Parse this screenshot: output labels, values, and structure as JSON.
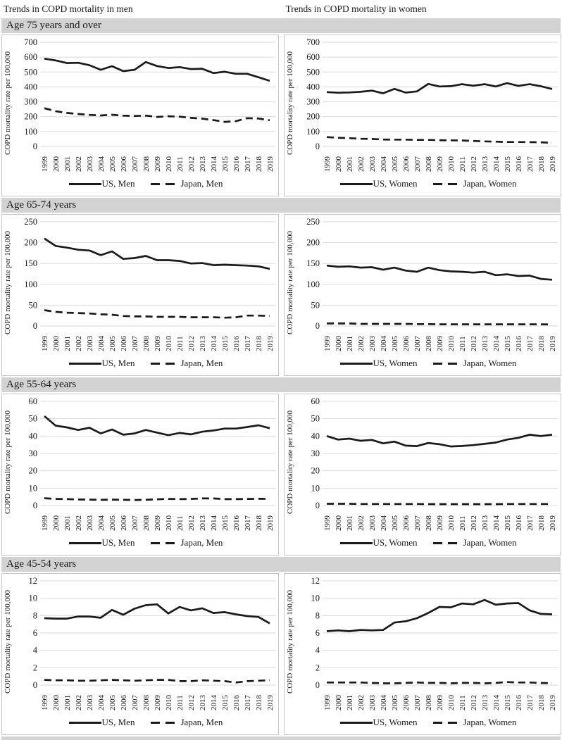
{
  "column_titles": {
    "men": "Trends in COPD mortality in men",
    "women": "Trends in COPD mortality in women"
  },
  "age_bands": [
    "Age 75 years and over",
    "Age 65-74 years",
    "Age 55-64 years",
    "Age 45-54 years"
  ],
  "colors": {
    "line": "#1a1a1a",
    "grid": "#dadada",
    "band_bg": "#d2d2d2",
    "panel_border": "#c6c6c6",
    "text": "#1a1a1a"
  },
  "chart_data": [
    {
      "type": "line",
      "age_group": "Age 75 years and over",
      "column": "men",
      "ylabel": "COPD mortality rate per 100,000",
      "ylim": [
        0,
        700
      ],
      "ytick_interval": 100,
      "grid": true,
      "legend_position": "bottom",
      "categories": [
        "1999",
        "2000",
        "2001",
        "2002",
        "2003",
        "2004",
        "2005",
        "2006",
        "2007",
        "2008",
        "2009",
        "2010",
        "2011",
        "2012",
        "2013",
        "2014",
        "2015",
        "2016",
        "2017",
        "2018",
        "2019"
      ],
      "series": [
        {
          "name": "US, Men",
          "line_style": "solid",
          "values": [
            590,
            578,
            560,
            562,
            546,
            515,
            539,
            506,
            515,
            567,
            540,
            527,
            533,
            520,
            522,
            493,
            502,
            488,
            488,
            465,
            441
          ]
        },
        {
          "name": "Japan, Men",
          "line_style": "dashed",
          "values": [
            257,
            237,
            225,
            218,
            212,
            208,
            213,
            207,
            205,
            207,
            198,
            203,
            200,
            192,
            187,
            177,
            165,
            170,
            190,
            188,
            176
          ]
        }
      ]
    },
    {
      "type": "line",
      "age_group": "Age 75 years and over",
      "column": "women",
      "ylabel": "COPD mortality rate per 100,000",
      "ylim": [
        0,
        700
      ],
      "ytick_interval": 100,
      "grid": true,
      "legend_position": "bottom",
      "categories": [
        "1999",
        "2000",
        "2001",
        "2002",
        "2003",
        "2004",
        "2005",
        "2006",
        "2007",
        "2008",
        "2009",
        "2010",
        "2011",
        "2012",
        "2013",
        "2014",
        "2015",
        "2016",
        "2017",
        "2018",
        "2019"
      ],
      "series": [
        {
          "name": "US, Women",
          "line_style": "solid",
          "values": [
            365,
            361,
            363,
            367,
            375,
            357,
            387,
            362,
            370,
            420,
            403,
            405,
            418,
            408,
            418,
            403,
            425,
            407,
            418,
            405,
            386
          ]
        },
        {
          "name": "Japan, Women",
          "line_style": "dashed",
          "values": [
            63,
            58,
            56,
            52,
            50,
            47,
            46,
            46,
            44,
            44,
            42,
            41,
            40,
            37,
            34,
            32,
            30,
            30,
            29,
            28,
            25
          ]
        }
      ]
    },
    {
      "type": "line",
      "age_group": "Age 65-74 years",
      "column": "men",
      "ylabel": "COPD mortality rate per 100,000",
      "ylim": [
        0,
        250
      ],
      "ytick_interval": 50,
      "grid": true,
      "legend_position": "bottom",
      "categories": [
        "1999",
        "2000",
        "2001",
        "2002",
        "2003",
        "2004",
        "2005",
        "2006",
        "2007",
        "2008",
        "2009",
        "2010",
        "2011",
        "2012",
        "2013",
        "2014",
        "2015",
        "2016",
        "2017",
        "2018",
        "2019"
      ],
      "series": [
        {
          "name": "US, Men",
          "line_style": "solid",
          "values": [
            210,
            192,
            188,
            183,
            181,
            170,
            179,
            161,
            163,
            168,
            158,
            158,
            156,
            150,
            151,
            146,
            147,
            146,
            145,
            143,
            137
          ]
        },
        {
          "name": "Japan, Men",
          "line_style": "dashed",
          "values": [
            38,
            34,
            32,
            31,
            30,
            28,
            27,
            24,
            23,
            23,
            22,
            22,
            22,
            21,
            21,
            21,
            20,
            21,
            25,
            25,
            24
          ]
        }
      ]
    },
    {
      "type": "line",
      "age_group": "Age 65-74 years",
      "column": "women",
      "ylabel": "COPD mortality rate per 100,000",
      "ylim": [
        0,
        250
      ],
      "ytick_interval": 50,
      "grid": true,
      "legend_position": "bottom",
      "categories": [
        "1999",
        "2000",
        "2001",
        "2002",
        "2003",
        "2004",
        "2005",
        "2006",
        "2007",
        "2008",
        "2009",
        "2010",
        "2011",
        "2012",
        "2013",
        "2014",
        "2015",
        "2016",
        "2017",
        "2018",
        "2019"
      ],
      "series": [
        {
          "name": "US, Women",
          "line_style": "solid",
          "values": [
            145,
            142,
            143,
            140,
            141,
            135,
            140,
            133,
            130,
            140,
            134,
            131,
            130,
            128,
            130,
            122,
            124,
            120,
            121,
            113,
            111
          ]
        },
        {
          "name": "Japan, Women",
          "line_style": "dashed",
          "values": [
            6,
            6,
            6,
            5,
            5,
            5,
            5,
            5,
            4.5,
            4.5,
            4,
            4,
            4,
            4,
            4,
            4,
            4,
            4,
            4,
            4,
            3.5
          ]
        }
      ]
    },
    {
      "type": "line",
      "age_group": "Age 55-64 years",
      "column": "men",
      "ylabel": "COPD mortality rate per 100,000",
      "ylim": [
        0,
        60
      ],
      "ytick_interval": 10,
      "grid": true,
      "legend_position": "bottom",
      "categories": [
        "1999",
        "2000",
        "2001",
        "2002",
        "2003",
        "2004",
        "2005",
        "2006",
        "2007",
        "2008",
        "2009",
        "2010",
        "2011",
        "2012",
        "2013",
        "2014",
        "2015",
        "2016",
        "2017",
        "2018",
        "2019"
      ],
      "series": [
        {
          "name": "US, Men",
          "line_style": "solid",
          "values": [
            51.5,
            46,
            45,
            43.5,
            44.8,
            41.5,
            43.8,
            40.8,
            41.5,
            43.5,
            42,
            40.5,
            41.8,
            41,
            42.5,
            43.2,
            44.3,
            44.3,
            45.2,
            46.2,
            44.5
          ]
        },
        {
          "name": "Japan, Men",
          "line_style": "dashed",
          "values": [
            4.2,
            3.8,
            3.7,
            3.5,
            3.4,
            3.3,
            3.4,
            3.3,
            3.2,
            3.3,
            3.6,
            3.8,
            3.7,
            3.8,
            4.1,
            4.1,
            3.7,
            3.7,
            3.8,
            3.9,
            3.8
          ]
        }
      ]
    },
    {
      "type": "line",
      "age_group": "Age 55-64 years",
      "column": "women",
      "ylabel": "COPD mortality rate per 100,000",
      "ylim": [
        0,
        60
      ],
      "ytick_interval": 10,
      "grid": true,
      "legend_position": "bottom",
      "categories": [
        "1999",
        "2000",
        "2001",
        "2002",
        "2003",
        "2004",
        "2005",
        "2006",
        "2007",
        "2008",
        "2009",
        "2010",
        "2011",
        "2012",
        "2013",
        "2014",
        "2015",
        "2016",
        "2017",
        "2018",
        "2019"
      ],
      "series": [
        {
          "name": "US, Women",
          "line_style": "solid",
          "values": [
            40,
            38,
            38.5,
            37.3,
            37.8,
            35.8,
            36.8,
            34.5,
            34.2,
            36,
            35.3,
            34,
            34.3,
            34.8,
            35.5,
            36.3,
            38,
            39,
            40.8,
            40,
            40.8
          ]
        },
        {
          "name": "Japan, Women",
          "line_style": "dashed",
          "values": [
            1,
            1,
            1,
            0.9,
            0.9,
            0.9,
            0.9,
            0.9,
            0.9,
            0.8,
            0.8,
            0.8,
            0.8,
            0.8,
            0.8,
            0.8,
            0.9,
            0.9,
            0.9,
            0.9,
            0.9
          ]
        }
      ]
    },
    {
      "type": "line",
      "age_group": "Age 45-54 years",
      "column": "men",
      "ylabel": "COPD mortality rate per 100,000",
      "ylim": [
        0,
        12
      ],
      "ytick_interval": 2,
      "grid": true,
      "legend_position": "bottom",
      "categories": [
        "1999",
        "2000",
        "2001",
        "2002",
        "2003",
        "2004",
        "2005",
        "2006",
        "2007",
        "2008",
        "2009",
        "2010",
        "2011",
        "2012",
        "2013",
        "2014",
        "2015",
        "2016",
        "2017",
        "2018",
        "2019"
      ],
      "series": [
        {
          "name": "US, Men",
          "line_style": "solid",
          "values": [
            7.7,
            7.65,
            7.65,
            7.9,
            7.9,
            7.75,
            8.65,
            8.1,
            8.8,
            9.2,
            9.3,
            8.25,
            9.0,
            8.6,
            8.85,
            8.3,
            8.4,
            8.15,
            7.95,
            7.85,
            7.1
          ]
        },
        {
          "name": "Japan, Men",
          "line_style": "dashed",
          "values": [
            0.6,
            0.55,
            0.55,
            0.5,
            0.5,
            0.55,
            0.6,
            0.55,
            0.5,
            0.55,
            0.6,
            0.6,
            0.45,
            0.45,
            0.55,
            0.5,
            0.45,
            0.3,
            0.45,
            0.5,
            0.55
          ]
        }
      ]
    },
    {
      "type": "line",
      "age_group": "Age 45-54 years",
      "column": "women",
      "ylabel": "COPD mortality rate per 100,000",
      "ylim": [
        0,
        12
      ],
      "ytick_interval": 2,
      "grid": true,
      "legend_position": "bottom",
      "categories": [
        "1999",
        "2000",
        "2001",
        "2002",
        "2003",
        "2004",
        "2005",
        "2006",
        "2007",
        "2008",
        "2009",
        "2010",
        "2011",
        "2012",
        "2013",
        "2014",
        "2015",
        "2016",
        "2017",
        "2018",
        "2019"
      ],
      "series": [
        {
          "name": "US, Women",
          "line_style": "solid",
          "values": [
            6.2,
            6.3,
            6.2,
            6.35,
            6.3,
            6.35,
            7.2,
            7.35,
            7.7,
            8.3,
            9.0,
            8.95,
            9.4,
            9.3,
            9.8,
            9.25,
            9.4,
            9.45,
            8.6,
            8.2,
            8.15
          ]
        },
        {
          "name": "Japan, Women",
          "line_style": "dashed",
          "values": [
            0.3,
            0.3,
            0.3,
            0.3,
            0.25,
            0.2,
            0.2,
            0.25,
            0.3,
            0.25,
            0.25,
            0.2,
            0.25,
            0.25,
            0.2,
            0.25,
            0.35,
            0.3,
            0.3,
            0.25,
            0.2
          ]
        }
      ]
    }
  ]
}
